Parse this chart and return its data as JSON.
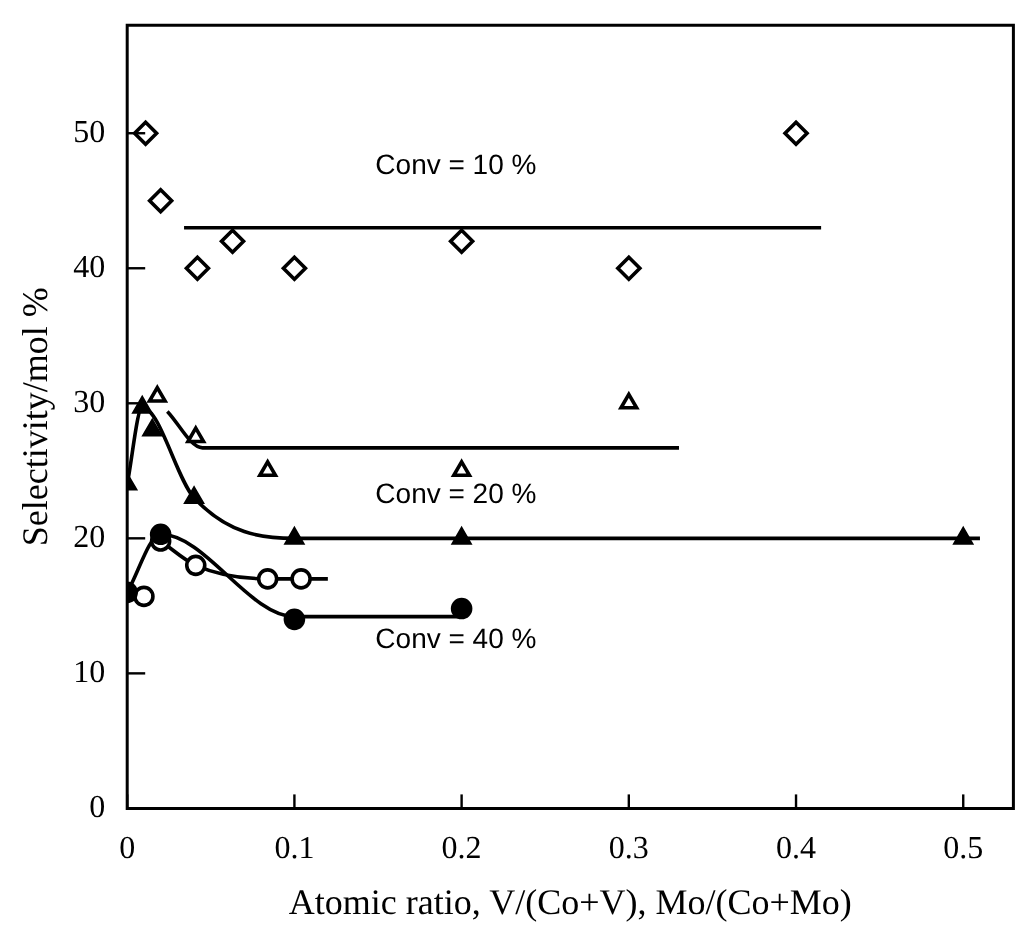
{
  "chart_data": {
    "type": "scatter",
    "xlabel": "Atomic ratio, V/(Co+V), Mo/(Co+Mo)",
    "ylabel": "Selectivity/mol %",
    "xlim": [
      0,
      0.53
    ],
    "xticks": [
      0,
      0.1,
      0.2,
      0.3,
      0.4,
      0.5
    ],
    "ylim": [
      0,
      58
    ],
    "yticks": [
      0,
      10,
      20,
      30,
      40,
      50
    ],
    "grid": false,
    "legend": false,
    "series": [
      {
        "type": "scatter",
        "marker": "diamond",
        "color": "#ffffff",
        "x": [
          0.011,
          0.02,
          0.042,
          0.063,
          0.1,
          0.2,
          0.3,
          0.4
        ],
        "values": [
          50,
          45,
          40,
          42,
          40,
          42,
          40,
          50
        ]
      },
      {
        "type": "line",
        "marker": "none",
        "color": "#000000",
        "x": [
          0.034,
          0.415
        ],
        "values": [
          43,
          43
        ]
      },
      {
        "type": "scatter",
        "marker": "triangle",
        "color": "#ffffff",
        "x": [
          0.018,
          0.041,
          0.084,
          0.2,
          0.3
        ],
        "values": [
          30.5,
          27.5,
          25,
          25,
          30
        ]
      },
      {
        "type": "line",
        "marker": "none",
        "color": "#000000",
        "x": [
          0.024,
          0.045,
          0.33
        ],
        "values": [
          29.4,
          26.7,
          26.7
        ]
      },
      {
        "type": "scatter",
        "marker": "triangle",
        "color": "#000000",
        "x": [
          0,
          0.009,
          0.015,
          0.04,
          0.1,
          0.2,
          0.5
        ],
        "values": [
          24,
          29.7,
          28,
          23,
          20,
          20,
          20
        ]
      },
      {
        "type": "line",
        "marker": "none",
        "color": "#000000",
        "x": [
          0,
          0.009,
          0.04,
          0.1,
          0.51
        ],
        "values": [
          24,
          29.7,
          23,
          20,
          20
        ]
      },
      {
        "type": "scatter",
        "marker": "circle",
        "color": "#ffffff",
        "x": [
          0.01,
          0.02,
          0.041,
          0.084,
          0.104
        ],
        "values": [
          15.7,
          19.8,
          18,
          17,
          17
        ]
      },
      {
        "type": "line",
        "marker": "none",
        "color": "#000000",
        "x": [
          0.02,
          0.041,
          0.084,
          0.12
        ],
        "values": [
          19.8,
          18,
          17,
          17
        ]
      },
      {
        "type": "scatter",
        "marker": "circle",
        "color": "#000000",
        "x": [
          0,
          0.02,
          0.1,
          0.2
        ],
        "values": [
          16,
          20.3,
          14,
          14.8
        ]
      },
      {
        "type": "line",
        "marker": "none",
        "color": "#000000",
        "x": [
          0,
          0.02,
          0.1,
          0.2
        ],
        "values": [
          16,
          20.3,
          14.2,
          14.2
        ]
      }
    ],
    "annotations": [
      "Conv = 10 %",
      "Conv = 20 %",
      "Conv = 40 %"
    ]
  }
}
